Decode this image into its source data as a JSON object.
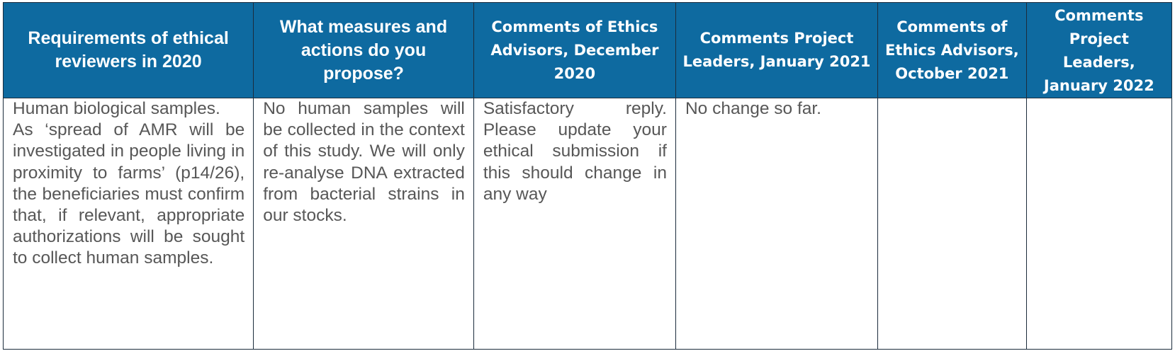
{
  "table": {
    "headers": [
      "Requirements of ethical reviewers in 2020",
      "What measures and actions do you propose?",
      "Comments of Ethics Advisors, December 2020",
      "Comments Project Leaders, January 2021",
      "Comments of Ethics Advisors, October 2021",
      "Comments Project Leaders, January 2022"
    ],
    "row": {
      "requirements_p1": "Human biological samples.",
      "requirements_p2": "As ‘spread of AMR will be investigated in people living in proximity to farms’ (p14/26), the beneficiaries must confirm that, if relevant, appropriate authorizations will be sought to collect human samples.",
      "measures": "No human samples will be collected in the context of this study. We will only re-analyse DNA extracted from bacterial strains in our stocks.",
      "advisors_dec_2020": "Satisfactory reply. Please update your ethical submission if this should change in any way",
      "leaders_jan_2021": "No change so far.",
      "advisors_oct_2021": "",
      "leaders_jan_2022": ""
    }
  },
  "colors": {
    "header_background": "#0e6aa0",
    "header_text": "#ffffff",
    "body_text": "#575757",
    "border": "#1c2c3c"
  }
}
